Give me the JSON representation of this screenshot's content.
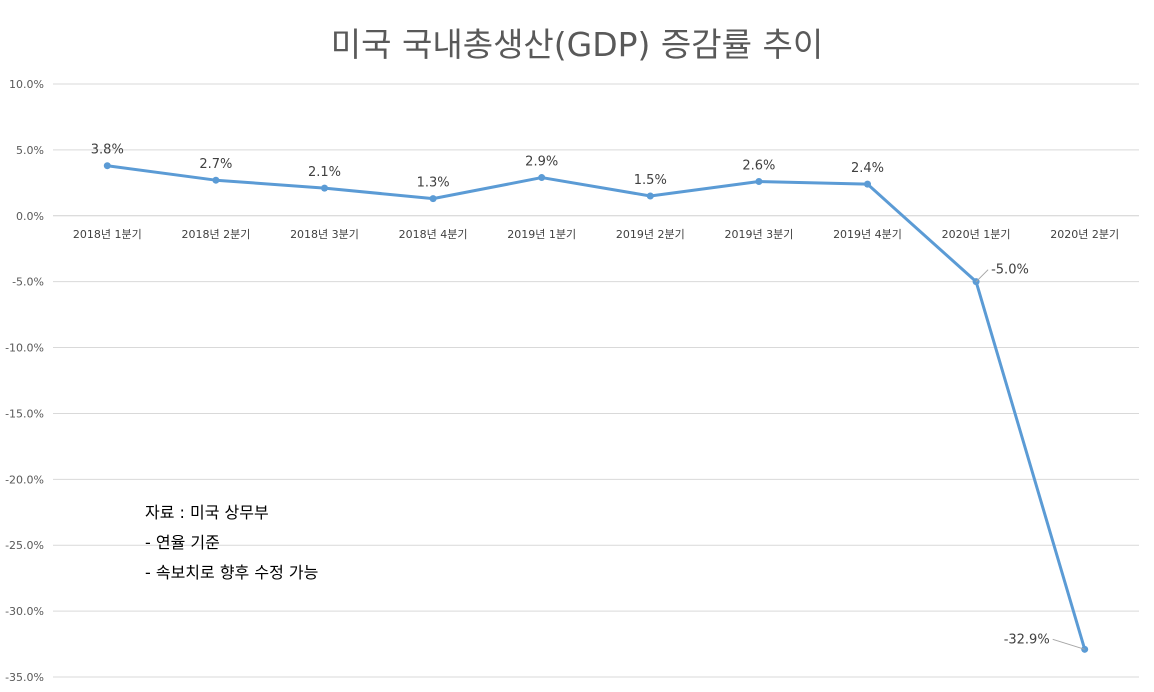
{
  "chart_data": {
    "type": "line",
    "title": "미국 국내총생산(GDP) 증감률 추이",
    "categories": [
      "2018년 1분기",
      "2018년 2분기",
      "2018년 3분기",
      "2018년 4분기",
      "2019년 1분기",
      "2019년 2분기",
      "2019년 3분기",
      "2019년 4분기",
      "2020년 1분기",
      "2020년 2분기"
    ],
    "series": [
      {
        "values": [
          3.8,
          2.7,
          2.1,
          1.3,
          2.9,
          1.5,
          2.6,
          2.4,
          -5.0,
          -32.9
        ],
        "labels": [
          "3.8%",
          "2.7%",
          "2.1%",
          "1.3%",
          "2.9%",
          "1.5%",
          "2.6%",
          "2.4%",
          "-5.0%",
          "-32.9%"
        ],
        "color": "#5B9BD5"
      }
    ],
    "ylim": [
      -35,
      10
    ],
    "yticks": [
      10,
      5,
      0,
      -5,
      -10,
      -15,
      -20,
      -25,
      -30,
      -35
    ],
    "ytick_labels": [
      "10.0%",
      "5.0%",
      "0.0%",
      "-5.0%",
      "-10.0%",
      "-15.0%",
      "-20.0%",
      "-25.0%",
      "-30.0%",
      "-35.0%"
    ],
    "xlabel": "",
    "ylabel": "",
    "grid": true,
    "legend": "none",
    "annotations": [
      "자료 : 미국 상무부",
      "- 연율 기준",
      "- 속보치로 향후 수정 가능"
    ]
  }
}
